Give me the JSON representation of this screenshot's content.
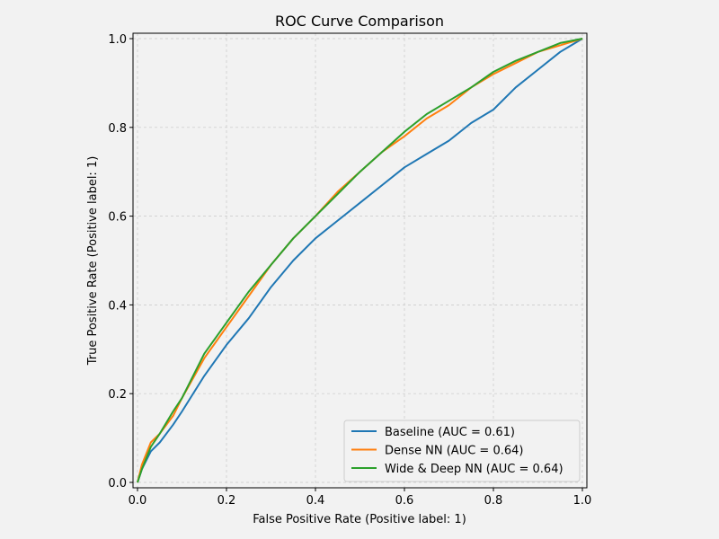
{
  "chart_data": {
    "type": "line",
    "title": "ROC Curve Comparison",
    "xlabel": "False Positive Rate (Positive label: 1)",
    "ylabel": "True Positive Rate (Positive label: 1)",
    "xlim": [
      0,
      1
    ],
    "ylim": [
      0,
      1
    ],
    "x_ticks": [
      0.0,
      0.2,
      0.4,
      0.6,
      0.8,
      1.0
    ],
    "y_ticks": [
      0.0,
      0.2,
      0.4,
      0.6,
      0.8,
      1.0
    ],
    "x_tick_labels": [
      "0.0",
      "0.2",
      "0.4",
      "0.6",
      "0.8",
      "1.0"
    ],
    "y_tick_labels": [
      "0.0",
      "0.2",
      "0.4",
      "0.6",
      "0.8",
      "1.0"
    ],
    "grid": true,
    "legend_position": "lower-right",
    "series": [
      {
        "name": "Baseline (AUC = 0.61)",
        "color": "#1f77b4",
        "x": [
          0.0,
          0.01,
          0.03,
          0.05,
          0.08,
          0.1,
          0.15,
          0.2,
          0.25,
          0.3,
          0.35,
          0.4,
          0.45,
          0.5,
          0.55,
          0.6,
          0.65,
          0.7,
          0.75,
          0.8,
          0.85,
          0.9,
          0.95,
          1.0
        ],
        "y": [
          0.0,
          0.03,
          0.07,
          0.09,
          0.13,
          0.16,
          0.24,
          0.31,
          0.37,
          0.44,
          0.5,
          0.55,
          0.59,
          0.63,
          0.67,
          0.71,
          0.74,
          0.77,
          0.81,
          0.84,
          0.89,
          0.93,
          0.97,
          1.0
        ]
      },
      {
        "name": "Dense NN (AUC = 0.64)",
        "color": "#ff7f0e",
        "x": [
          0.0,
          0.01,
          0.03,
          0.05,
          0.08,
          0.1,
          0.15,
          0.2,
          0.25,
          0.3,
          0.35,
          0.4,
          0.45,
          0.5,
          0.55,
          0.6,
          0.65,
          0.7,
          0.75,
          0.8,
          0.85,
          0.9,
          0.95,
          1.0
        ],
        "y": [
          0.0,
          0.04,
          0.09,
          0.11,
          0.15,
          0.19,
          0.28,
          0.35,
          0.42,
          0.49,
          0.55,
          0.6,
          0.655,
          0.7,
          0.745,
          0.78,
          0.82,
          0.85,
          0.89,
          0.92,
          0.945,
          0.97,
          0.985,
          1.0
        ]
      },
      {
        "name": "Wide & Deep NN (AUC = 0.64)",
        "color": "#2ca02c",
        "x": [
          0.0,
          0.01,
          0.03,
          0.05,
          0.08,
          0.1,
          0.15,
          0.2,
          0.25,
          0.3,
          0.35,
          0.4,
          0.45,
          0.5,
          0.55,
          0.6,
          0.65,
          0.7,
          0.75,
          0.8,
          0.85,
          0.9,
          0.95,
          1.0
        ],
        "y": [
          0.0,
          0.03,
          0.08,
          0.11,
          0.16,
          0.19,
          0.29,
          0.36,
          0.43,
          0.49,
          0.55,
          0.6,
          0.65,
          0.7,
          0.745,
          0.79,
          0.83,
          0.86,
          0.89,
          0.925,
          0.95,
          0.97,
          0.99,
          1.0
        ]
      }
    ]
  }
}
